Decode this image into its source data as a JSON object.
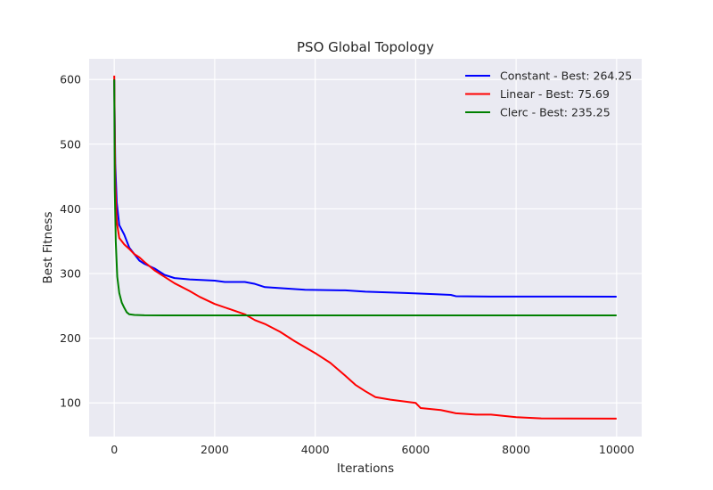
{
  "chart_data": {
    "type": "line",
    "title": "PSO Global Topology",
    "xlabel": "Iterations",
    "ylabel": "Best Fitness",
    "xlim": [
      -500,
      10500
    ],
    "ylim": [
      48,
      632
    ],
    "xticks": [
      0,
      2000,
      4000,
      6000,
      8000,
      10000
    ],
    "yticks": [
      100,
      200,
      300,
      400,
      500,
      600
    ],
    "grid": true,
    "legend_position": "upper right",
    "series": [
      {
        "name": "Constant - Best: 264.25",
        "color": "#0000ff",
        "points": [
          [
            0,
            600
          ],
          [
            20,
            470
          ],
          [
            50,
            410
          ],
          [
            100,
            375
          ],
          [
            200,
            360
          ],
          [
            300,
            340
          ],
          [
            400,
            330
          ],
          [
            500,
            320
          ],
          [
            600,
            315
          ],
          [
            800,
            308
          ],
          [
            1000,
            298
          ],
          [
            1200,
            293
          ],
          [
            1500,
            291
          ],
          [
            2000,
            289
          ],
          [
            2200,
            287
          ],
          [
            2600,
            287
          ],
          [
            2800,
            284
          ],
          [
            3000,
            279
          ],
          [
            3400,
            277
          ],
          [
            3800,
            275
          ],
          [
            4600,
            274
          ],
          [
            5000,
            272
          ],
          [
            5800,
            270
          ],
          [
            6400,
            268
          ],
          [
            6700,
            267
          ],
          [
            6800,
            265
          ],
          [
            7500,
            264.5
          ],
          [
            10000,
            264.25
          ]
        ]
      },
      {
        "name": "Linear - Best: 75.69",
        "color": "#ff0000",
        "points": [
          [
            0,
            606
          ],
          [
            20,
            440
          ],
          [
            50,
            380
          ],
          [
            100,
            355
          ],
          [
            200,
            345
          ],
          [
            300,
            338
          ],
          [
            400,
            330
          ],
          [
            500,
            325
          ],
          [
            600,
            318
          ],
          [
            800,
            305
          ],
          [
            1000,
            295
          ],
          [
            1200,
            285
          ],
          [
            1500,
            273
          ],
          [
            1700,
            264
          ],
          [
            2000,
            253
          ],
          [
            2300,
            245
          ],
          [
            2600,
            237
          ],
          [
            2800,
            228
          ],
          [
            3000,
            222
          ],
          [
            3300,
            210
          ],
          [
            3600,
            195
          ],
          [
            4000,
            177
          ],
          [
            4300,
            162
          ],
          [
            4600,
            142
          ],
          [
            4800,
            128
          ],
          [
            5000,
            118
          ],
          [
            5200,
            109
          ],
          [
            5500,
            105
          ],
          [
            6000,
            100
          ],
          [
            6100,
            92
          ],
          [
            6500,
            89
          ],
          [
            6800,
            84
          ],
          [
            7200,
            82
          ],
          [
            7500,
            82
          ],
          [
            8000,
            78
          ],
          [
            8500,
            76
          ],
          [
            10000,
            75.69
          ]
        ]
      },
      {
        "name": "Clerc - Best: 235.25",
        "color": "#008000",
        "points": [
          [
            0,
            600
          ],
          [
            10,
            430
          ],
          [
            30,
            350
          ],
          [
            60,
            295
          ],
          [
            100,
            270
          ],
          [
            150,
            255
          ],
          [
            200,
            247
          ],
          [
            250,
            240
          ],
          [
            300,
            237
          ],
          [
            400,
            236
          ],
          [
            600,
            235.5
          ],
          [
            1000,
            235.3
          ],
          [
            10000,
            235.25
          ]
        ]
      }
    ]
  }
}
